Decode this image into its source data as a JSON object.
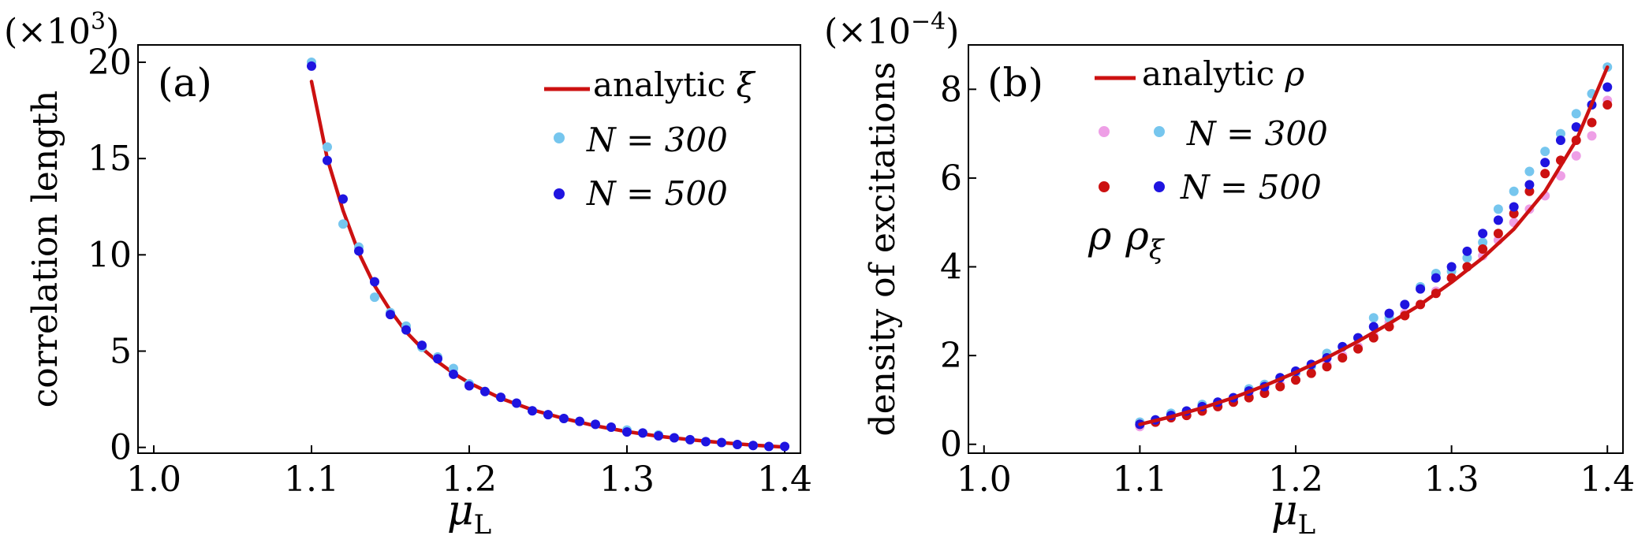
{
  "chart_data": [
    {
      "type": "scatter",
      "panel_label": "(a)",
      "ylabel": "correlation length",
      "xlabel": "μ",
      "xlabel_sub": "L",
      "scale_note": {
        "base": "(×10",
        "exp": "3",
        "close": ")"
      },
      "xlim": [
        0.99,
        1.41
      ],
      "ylim": [
        -0.3,
        20.9
      ],
      "xticks": [
        1.0,
        1.1,
        1.2,
        1.3,
        1.4
      ],
      "xtick_labels": [
        "1.0",
        "1.1",
        "1.2",
        "1.3",
        "1.4"
      ],
      "yticks": [
        0,
        5,
        10,
        15,
        20
      ],
      "ytick_labels": [
        "0",
        "5",
        "10",
        "15",
        "20"
      ],
      "grid": false,
      "legend_position": "top-right",
      "legend": [
        {
          "label": "analytic",
          "math": "ξ",
          "kind": "line",
          "color": "#cc1111"
        },
        {
          "label": "N = 300",
          "kind": "marker",
          "color": "#76c6ee"
        },
        {
          "label": "N = 500",
          "kind": "marker",
          "color": "#1f14e0"
        }
      ],
      "analytic_curve": {
        "name": "analytic ξ",
        "color": "#cc1111",
        "x": [
          1.1,
          1.11,
          1.12,
          1.13,
          1.14,
          1.15,
          1.16,
          1.17,
          1.18,
          1.19,
          1.2,
          1.22,
          1.24,
          1.26,
          1.28,
          1.3,
          1.32,
          1.34,
          1.36,
          1.38,
          1.4
        ],
        "y": [
          19.0,
          15.0,
          12.3,
          10.1,
          8.4,
          7.1,
          6.0,
          5.15,
          4.45,
          3.85,
          3.35,
          2.55,
          1.95,
          1.5,
          1.12,
          0.82,
          0.58,
          0.4,
          0.25,
          0.12,
          0.02
        ]
      },
      "series": [
        {
          "name": "N = 300",
          "color": "#76c6ee",
          "x": [
            1.1,
            1.11,
            1.12,
            1.13,
            1.14,
            1.15,
            1.16,
            1.17,
            1.18,
            1.19,
            1.2,
            1.21,
            1.22,
            1.23,
            1.24,
            1.25,
            1.26,
            1.27,
            1.28,
            1.29,
            1.3,
            1.31,
            1.32,
            1.33,
            1.34,
            1.35,
            1.36,
            1.37,
            1.38,
            1.39,
            1.4
          ],
          "y": [
            20.0,
            15.6,
            11.6,
            10.4,
            7.8,
            7.0,
            6.3,
            5.2,
            4.7,
            4.1,
            3.3,
            2.9,
            2.6,
            2.3,
            1.9,
            1.7,
            1.5,
            1.35,
            1.2,
            1.05,
            0.9,
            0.75,
            0.65,
            0.5,
            0.4,
            0.3,
            0.25,
            0.15,
            0.1,
            0.05,
            0.05
          ]
        },
        {
          "name": "N = 500",
          "color": "#1f14e0",
          "x": [
            1.1,
            1.11,
            1.12,
            1.13,
            1.14,
            1.15,
            1.16,
            1.17,
            1.18,
            1.19,
            1.2,
            1.21,
            1.22,
            1.23,
            1.24,
            1.25,
            1.26,
            1.27,
            1.28,
            1.29,
            1.3,
            1.31,
            1.32,
            1.33,
            1.34,
            1.35,
            1.36,
            1.37,
            1.38,
            1.39,
            1.4
          ],
          "y": [
            19.8,
            14.9,
            12.9,
            10.2,
            8.6,
            6.9,
            6.1,
            5.3,
            4.6,
            3.8,
            3.2,
            2.9,
            2.6,
            2.3,
            1.9,
            1.7,
            1.5,
            1.35,
            1.2,
            1.05,
            0.8,
            0.75,
            0.6,
            0.5,
            0.4,
            0.3,
            0.25,
            0.15,
            0.1,
            0.05,
            0.05
          ]
        }
      ]
    },
    {
      "type": "scatter",
      "panel_label": "(b)",
      "ylabel": "density of excitations",
      "xlabel": "μ",
      "xlabel_sub": "L",
      "scale_note": {
        "base": "(×10",
        "exp": "−4",
        "close": ")"
      },
      "xlim": [
        0.99,
        1.41
      ],
      "ylim": [
        -0.2,
        9.0
      ],
      "xticks": [
        1.0,
        1.1,
        1.2,
        1.3,
        1.4
      ],
      "xtick_labels": [
        "1.0",
        "1.1",
        "1.2",
        "1.3",
        "1.4"
      ],
      "yticks": [
        0,
        2,
        4,
        6,
        8
      ],
      "ytick_labels": [
        "0",
        "2",
        "4",
        "6",
        "8"
      ],
      "grid": false,
      "legend_position": "top-left",
      "legend": [
        {
          "label": "analytic",
          "math": "ρ",
          "kind": "line",
          "color": "#cc1111"
        },
        {
          "label": "N = 300",
          "kind": "marker-pair",
          "colors": [
            "#ee9fe6",
            "#76c6ee"
          ]
        },
        {
          "label": "N = 500",
          "kind": "marker-pair",
          "colors": [
            "#cc1111",
            "#1f14e0"
          ]
        }
      ],
      "legend_footer": {
        "a": "ρ",
        "b": "ρ",
        "b_sub": "ξ"
      },
      "analytic_curve": {
        "name": "analytic ρ",
        "color": "#cc1111",
        "x": [
          1.1,
          1.12,
          1.14,
          1.16,
          1.18,
          1.2,
          1.22,
          1.24,
          1.26,
          1.28,
          1.3,
          1.32,
          1.34,
          1.36,
          1.38,
          1.4
        ],
        "y": [
          0.45,
          0.62,
          0.82,
          1.05,
          1.32,
          1.62,
          1.95,
          2.32,
          2.72,
          3.15,
          3.65,
          4.2,
          4.85,
          5.7,
          6.85,
          8.5
        ]
      },
      "series": [
        {
          "name": "ρ, N = 300",
          "color": "#ee9fe6",
          "x": [
            1.1,
            1.11,
            1.12,
            1.13,
            1.14,
            1.15,
            1.16,
            1.17,
            1.18,
            1.19,
            1.2,
            1.21,
            1.22,
            1.23,
            1.24,
            1.25,
            1.26,
            1.27,
            1.28,
            1.29,
            1.3,
            1.31,
            1.32,
            1.33,
            1.34,
            1.35,
            1.36,
            1.37,
            1.38,
            1.39,
            1.4
          ],
          "y": [
            0.4,
            0.5,
            0.6,
            0.65,
            0.75,
            0.85,
            0.95,
            1.1,
            1.2,
            1.35,
            1.45,
            1.6,
            1.8,
            2.0,
            2.2,
            2.45,
            2.75,
            2.95,
            3.15,
            3.45,
            3.75,
            4.0,
            4.25,
            4.6,
            5.0,
            5.3,
            5.6,
            6.05,
            6.5,
            6.95,
            7.75
          ]
        },
        {
          "name": "ρ_ξ, N = 300",
          "color": "#76c6ee",
          "x": [
            1.1,
            1.11,
            1.12,
            1.13,
            1.14,
            1.15,
            1.16,
            1.17,
            1.18,
            1.19,
            1.2,
            1.21,
            1.22,
            1.23,
            1.24,
            1.25,
            1.26,
            1.27,
            1.28,
            1.29,
            1.3,
            1.31,
            1.32,
            1.33,
            1.34,
            1.35,
            1.36,
            1.37,
            1.38,
            1.39,
            1.4
          ],
          "y": [
            0.5,
            0.55,
            0.7,
            0.75,
            0.9,
            0.95,
            1.05,
            1.25,
            1.35,
            1.5,
            1.6,
            1.75,
            2.05,
            2.2,
            2.4,
            2.85,
            2.85,
            3.15,
            3.55,
            3.85,
            3.9,
            4.2,
            4.55,
            5.3,
            5.7,
            6.15,
            6.6,
            7.0,
            7.45,
            7.9,
            8.5
          ]
        },
        {
          "name": "ρ, N = 500",
          "color": "#cc1111",
          "x": [
            1.1,
            1.11,
            1.12,
            1.13,
            1.14,
            1.15,
            1.16,
            1.17,
            1.18,
            1.19,
            1.2,
            1.21,
            1.22,
            1.23,
            1.24,
            1.25,
            1.26,
            1.27,
            1.28,
            1.29,
            1.3,
            1.31,
            1.32,
            1.33,
            1.34,
            1.35,
            1.36,
            1.37,
            1.38,
            1.39,
            1.4
          ],
          "y": [
            0.45,
            0.5,
            0.6,
            0.65,
            0.75,
            0.85,
            0.95,
            1.05,
            1.15,
            1.3,
            1.45,
            1.6,
            1.75,
            1.95,
            2.15,
            2.4,
            2.65,
            2.9,
            3.15,
            3.4,
            3.75,
            4.0,
            4.4,
            4.75,
            5.2,
            5.7,
            6.1,
            6.4,
            6.85,
            7.25,
            7.65
          ]
        },
        {
          "name": "ρ_ξ, N = 500",
          "color": "#1f14e0",
          "x": [
            1.1,
            1.11,
            1.12,
            1.13,
            1.14,
            1.15,
            1.16,
            1.17,
            1.18,
            1.19,
            1.2,
            1.21,
            1.22,
            1.23,
            1.24,
            1.25,
            1.26,
            1.27,
            1.28,
            1.29,
            1.3,
            1.31,
            1.32,
            1.33,
            1.34,
            1.35,
            1.36,
            1.37,
            1.38,
            1.39,
            1.4
          ],
          "y": [
            0.45,
            0.55,
            0.65,
            0.75,
            0.85,
            0.95,
            1.05,
            1.2,
            1.3,
            1.5,
            1.65,
            1.8,
            1.95,
            2.2,
            2.4,
            2.65,
            2.95,
            3.15,
            3.5,
            3.75,
            4.0,
            4.35,
            4.75,
            5.05,
            5.35,
            5.85,
            6.35,
            6.85,
            7.15,
            7.65,
            8.05
          ]
        }
      ]
    }
  ]
}
